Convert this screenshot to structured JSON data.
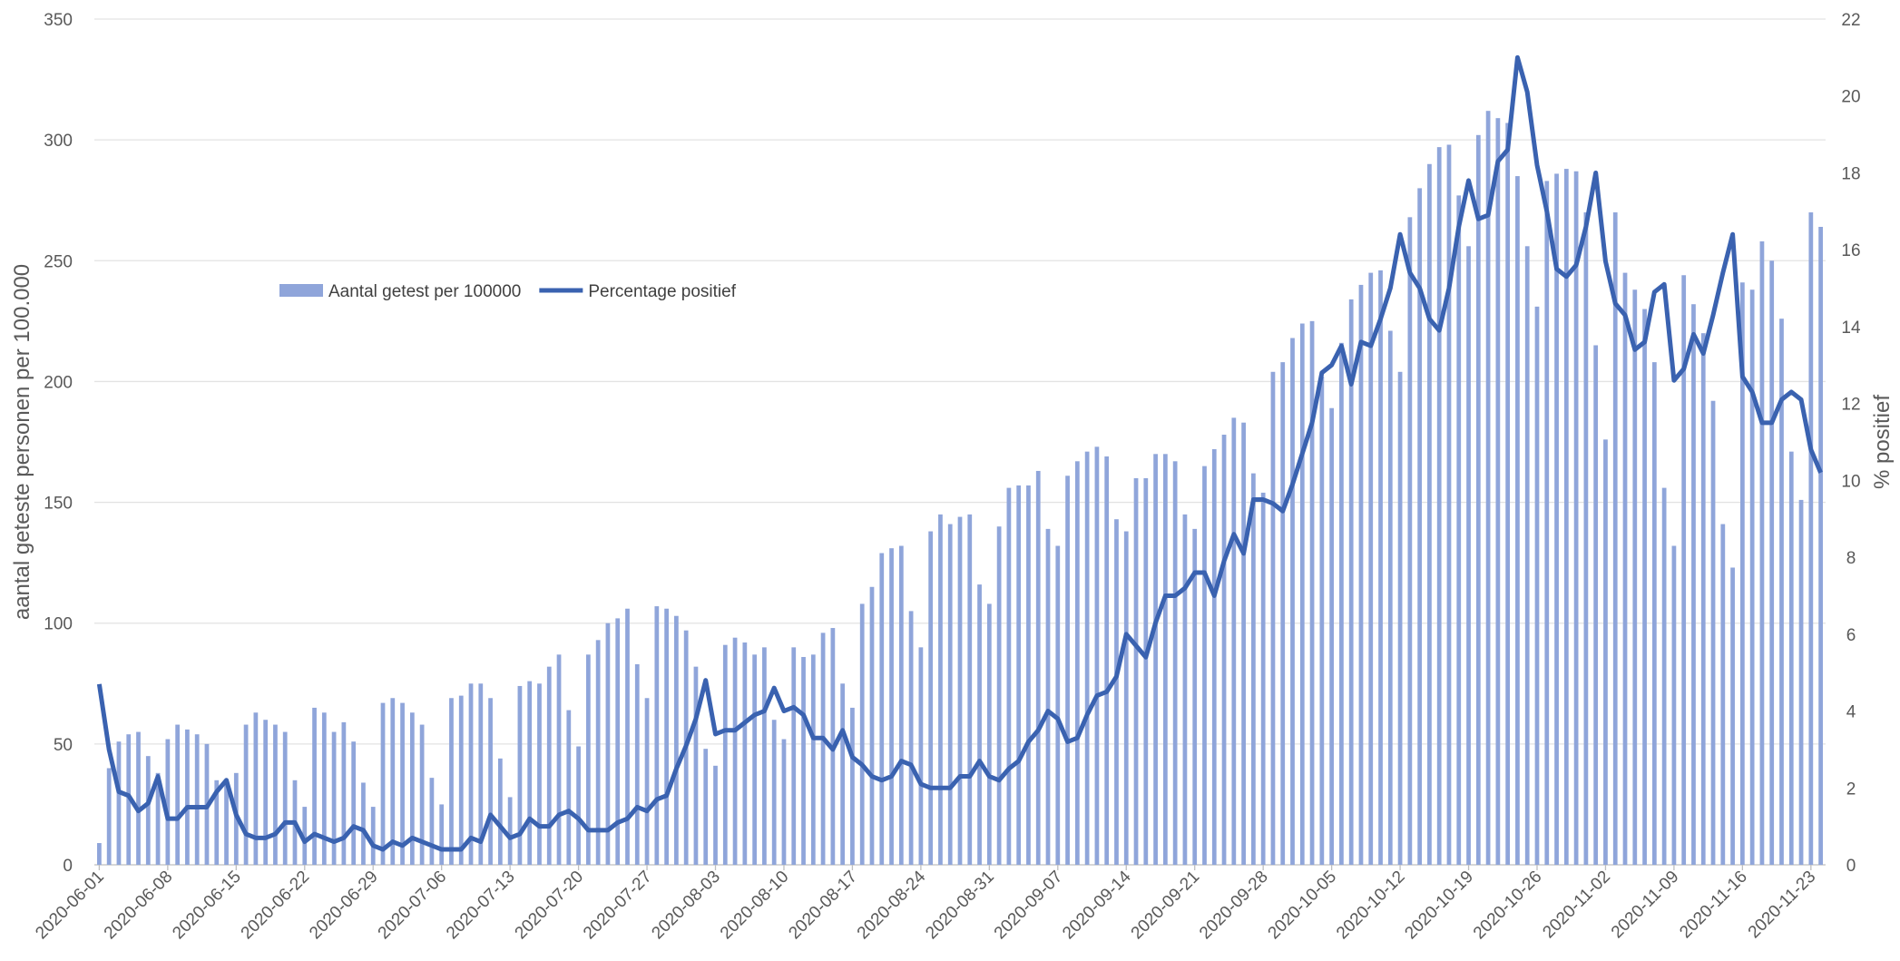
{
  "chart_data": {
    "type": "bar+line",
    "y_label": "aantal geteste personen per 100.000",
    "y2_label": "% positief",
    "categories": [
      "2020-06-01",
      null,
      null,
      null,
      null,
      null,
      null,
      "2020-06-08",
      null,
      null,
      null,
      null,
      null,
      null,
      "2020-06-15",
      null,
      null,
      null,
      null,
      null,
      null,
      "2020-06-22",
      null,
      null,
      null,
      null,
      null,
      null,
      "2020-06-29",
      null,
      null,
      null,
      null,
      null,
      null,
      "2020-07-06",
      null,
      null,
      null,
      null,
      null,
      null,
      "2020-07-13",
      null,
      null,
      null,
      null,
      null,
      null,
      "2020-07-20",
      null,
      null,
      null,
      null,
      null,
      null,
      "2020-07-27",
      null,
      null,
      null,
      null,
      null,
      null,
      "2020-08-03",
      null,
      null,
      null,
      null,
      null,
      null,
      "2020-08-10",
      null,
      null,
      null,
      null,
      null,
      null,
      "2020-08-17",
      null,
      null,
      null,
      null,
      null,
      null,
      "2020-08-24",
      null,
      null,
      null,
      null,
      null,
      null,
      "2020-08-31",
      null,
      null,
      null,
      null,
      null,
      null,
      "2020-09-07",
      null,
      null,
      null,
      null,
      null,
      null,
      "2020-09-14",
      null,
      null,
      null,
      null,
      null,
      null,
      "2020-09-21",
      null,
      null,
      null,
      null,
      null,
      null,
      "2020-09-28",
      null,
      null,
      null,
      null,
      null,
      null,
      "2020-10-05",
      null,
      null,
      null,
      null,
      null,
      null,
      "2020-10-12",
      null,
      null,
      null,
      null,
      null,
      null,
      "2020-10-19",
      null,
      null,
      null,
      null,
      null,
      null,
      "2020-10-26",
      null,
      null,
      null,
      null,
      null,
      null,
      "2020-11-02",
      null,
      null,
      null,
      null,
      null,
      null,
      "2020-11-09",
      null,
      null,
      null,
      null,
      null,
      null,
      "2020-11-16",
      null,
      null,
      null,
      null,
      null,
      null,
      "2020-11-23",
      null
    ],
    "series": [
      {
        "name": "Aantal getest per 100000",
        "type": "bar",
        "color": "#8fa5da",
        "values": [
          9,
          40,
          51,
          54,
          55,
          45,
          38,
          52,
          58,
          56,
          54,
          50,
          35,
          35,
          38,
          58,
          63,
          60,
          58,
          55,
          35,
          24,
          65,
          63,
          55,
          59,
          51,
          34,
          24,
          67,
          69,
          67,
          63,
          58,
          36,
          25,
          69,
          70,
          75,
          75,
          69,
          44,
          28,
          74,
          76,
          75,
          82,
          87,
          64,
          49,
          87,
          93,
          100,
          102,
          106,
          83,
          69,
          107,
          106,
          103,
          97,
          82,
          48,
          41,
          91,
          94,
          92,
          87,
          90,
          60,
          52,
          90,
          86,
          87,
          96,
          98,
          75,
          65,
          108,
          115,
          129,
          131,
          132,
          105,
          90,
          138,
          145,
          141,
          144,
          145,
          116,
          108,
          140,
          156,
          157,
          157,
          163,
          139,
          132,
          161,
          167,
          171,
          173,
          169,
          143,
          138,
          160,
          160,
          170,
          170,
          167,
          145,
          139,
          165,
          172,
          178,
          185,
          183,
          162,
          154,
          204,
          208,
          218,
          224,
          225,
          202,
          189,
          216,
          234,
          240,
          245,
          246,
          221,
          204,
          268,
          280,
          290,
          297,
          298,
          277,
          256,
          302,
          312,
          309,
          307,
          285,
          256,
          231,
          283,
          286,
          288,
          287,
          270,
          215,
          176,
          270,
          245,
          238,
          230,
          208,
          156,
          132,
          244,
          232,
          220,
          192,
          141,
          123,
          241,
          238,
          258,
          250,
          226,
          171,
          151,
          270,
          264
        ]
      },
      {
        "name": "Percentage positief",
        "type": "line",
        "axis": "y2",
        "color": "#3a62b0",
        "values": [
          4.7,
          3.0,
          1.9,
          1.8,
          1.4,
          1.6,
          2.3,
          1.2,
          1.2,
          1.5,
          1.5,
          1.5,
          1.9,
          2.2,
          1.3,
          0.8,
          0.7,
          0.7,
          0.8,
          1.1,
          1.1,
          0.6,
          0.8,
          0.7,
          0.6,
          0.7,
          1.0,
          0.9,
          0.5,
          0.4,
          0.6,
          0.5,
          0.7,
          0.6,
          0.5,
          0.4,
          0.4,
          0.4,
          0.7,
          0.6,
          1.3,
          1.0,
          0.7,
          0.8,
          1.2,
          1.0,
          1.0,
          1.3,
          1.4,
          1.2,
          0.9,
          0.9,
          0.9,
          1.1,
          1.2,
          1.5,
          1.4,
          1.7,
          1.8,
          2.5,
          3.1,
          3.8,
          4.8,
          3.4,
          3.5,
          3.5,
          3.7,
          3.9,
          4.0,
          4.6,
          4.0,
          4.1,
          3.9,
          3.3,
          3.3,
          3.0,
          3.5,
          2.8,
          2.6,
          2.3,
          2.2,
          2.3,
          2.7,
          2.6,
          2.1,
          2.0,
          2.0,
          2.0,
          2.3,
          2.3,
          2.7,
          2.3,
          2.2,
          2.5,
          2.7,
          3.2,
          3.5,
          4.0,
          3.8,
          3.2,
          3.3,
          3.9,
          4.4,
          4.5,
          4.9,
          6.0,
          5.7,
          5.4,
          6.3,
          7.0,
          7.0,
          7.2,
          7.6,
          7.6,
          7.0,
          7.9,
          8.6,
          8.1,
          9.5,
          9.5,
          9.4,
          9.2,
          9.9,
          10.7,
          11.5,
          12.8,
          13.0,
          13.5,
          12.5,
          13.6,
          13.5,
          14.2,
          15.0,
          16.4,
          15.4,
          15.0,
          14.2,
          13.9,
          15.0,
          16.6,
          17.8,
          16.8,
          16.9,
          18.3,
          18.6,
          21.0,
          20.1,
          18.2,
          17.0,
          15.5,
          15.3,
          15.6,
          16.6,
          18.0,
          15.7,
          14.6,
          14.3,
          13.4,
          13.6,
          14.9,
          15.1,
          12.6,
          12.9,
          13.8,
          13.3,
          14.3,
          15.4,
          16.4,
          12.7,
          12.3,
          11.5,
          11.5,
          12.1,
          12.3,
          12.1,
          10.8,
          10.2
        ]
      }
    ],
    "ylim": [
      0,
      350
    ],
    "yticks": [
      0,
      50,
      100,
      150,
      200,
      250,
      300,
      350
    ],
    "y2lim": [
      0,
      22
    ],
    "y2ticks": [
      0,
      2,
      4,
      6,
      8,
      10,
      12,
      14,
      16,
      18,
      20,
      22
    ],
    "grid": true
  }
}
